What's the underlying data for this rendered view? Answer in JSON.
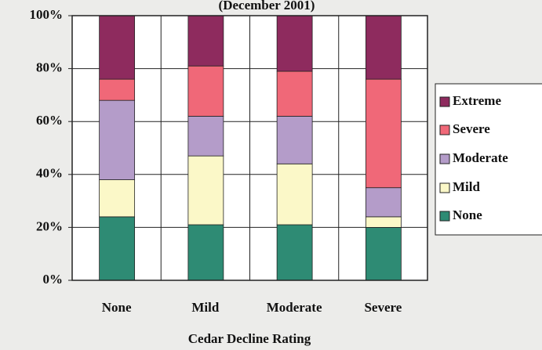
{
  "chart_data": {
    "type": "stacked_bar",
    "title": "(December 2001)",
    "x_label": "Cedar Decline Rating",
    "categories": [
      "None",
      "Mild",
      "Moderate",
      "Severe"
    ],
    "series": [
      {
        "name": "None",
        "color": "#2e8b74",
        "values": [
          24,
          21,
          21,
          20
        ]
      },
      {
        "name": "Mild",
        "color": "#fbf8c8",
        "values": [
          14,
          26,
          23,
          4
        ]
      },
      {
        "name": "Moderate",
        "color": "#b49cc9",
        "values": [
          30,
          15,
          18,
          11
        ]
      },
      {
        "name": "Severe",
        "color": "#f06878",
        "values": [
          8,
          19,
          17,
          41
        ]
      },
      {
        "name": "Extreme",
        "color": "#8e2b5e",
        "values": [
          24,
          19,
          21,
          24
        ]
      }
    ],
    "ylim": [
      0,
      100
    ],
    "yticks": [
      {
        "value": 0,
        "label": "0%"
      },
      {
        "value": 20,
        "label": "20%"
      },
      {
        "value": 40,
        "label": "40%"
      },
      {
        "value": 60,
        "label": "60%"
      },
      {
        "value": 80,
        "label": "80%"
      },
      {
        "value": 100,
        "label": "100%"
      }
    ],
    "grid": true,
    "legend": "right"
  }
}
